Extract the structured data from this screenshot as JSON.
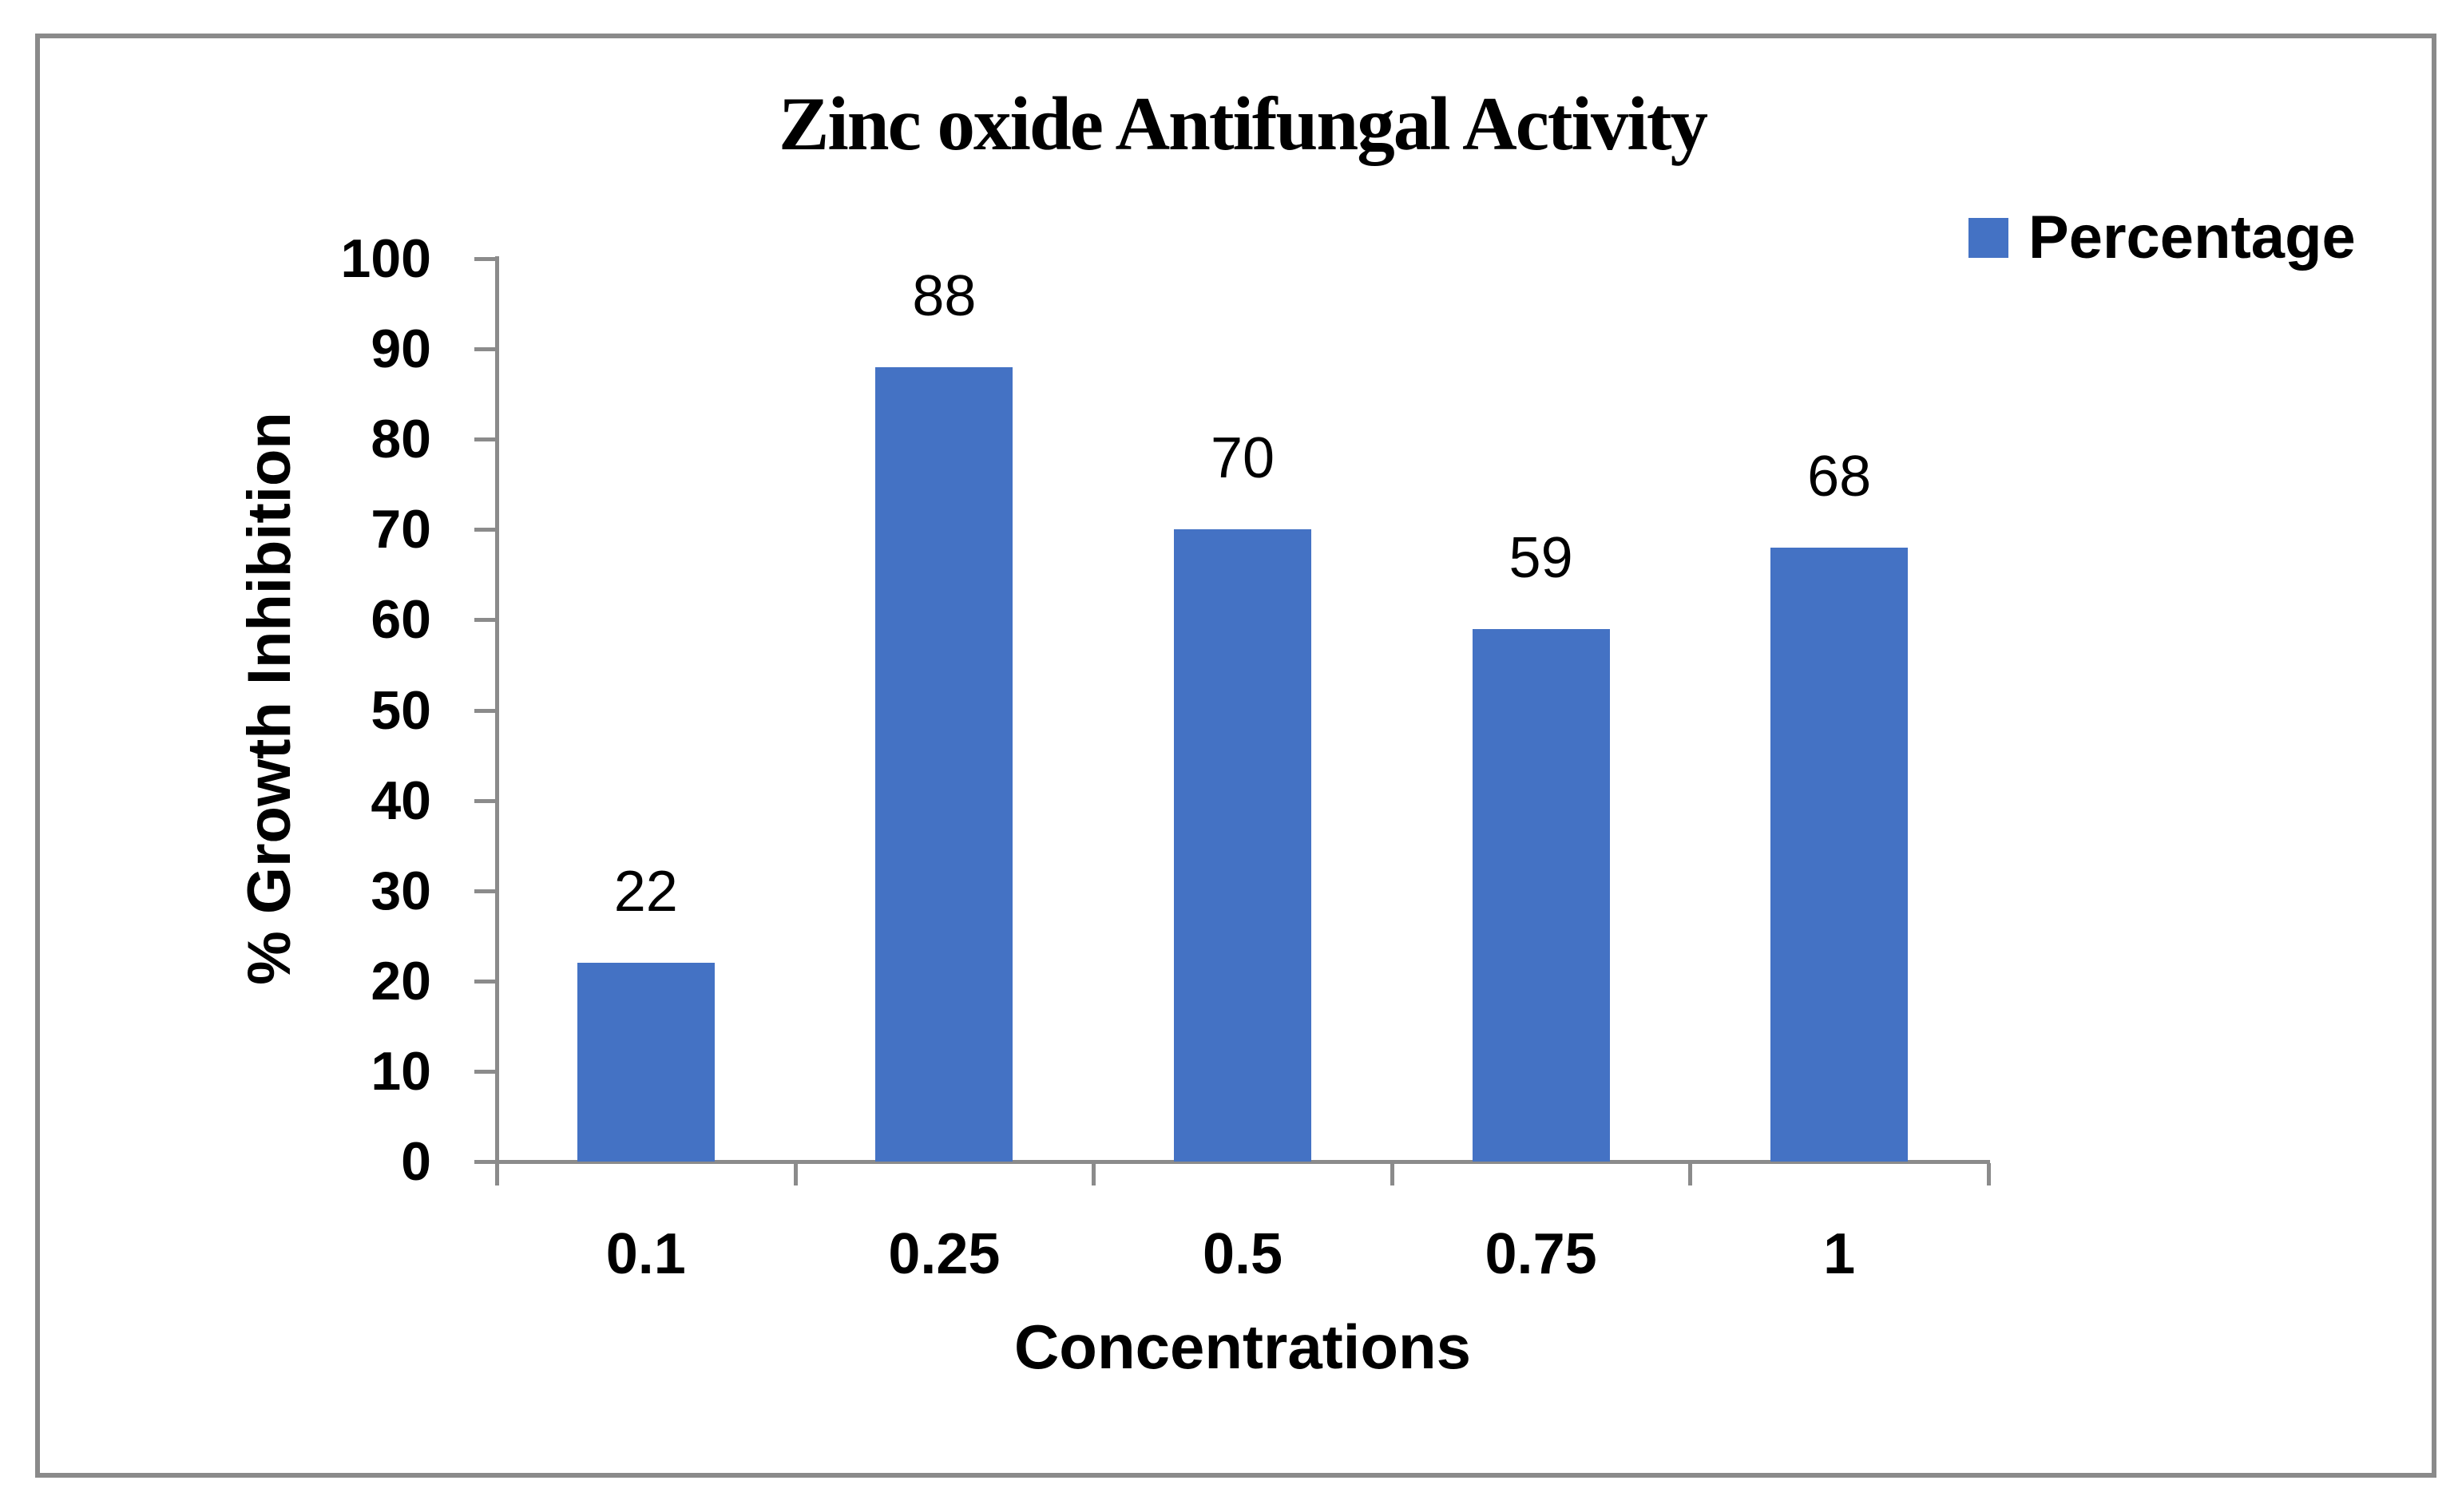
{
  "title": "Zinc oxide Antifungal Activity",
  "legend": {
    "label": "Percentage",
    "swatch_color": "#4472C4"
  },
  "axes": {
    "y_title": "% Growth Inhibition",
    "x_title": "Concentrations",
    "y_tick_labels": [
      "0",
      "10",
      "20",
      "30",
      "40",
      "50",
      "60",
      "70",
      "80",
      "90",
      "100"
    ]
  },
  "chart_data": {
    "type": "bar",
    "title": "Zinc oxide Antifungal Activity",
    "categories": [
      "0.1",
      "0.25",
      "0.5",
      "0.75",
      "1"
    ],
    "series": [
      {
        "name": "Percentage",
        "values": [
          22,
          88,
          70,
          59,
          68
        ]
      }
    ],
    "data_labels": [
      "22",
      "88",
      "70",
      "59",
      "68"
    ],
    "xlabel": "Concentrations",
    "ylabel": "% Growth Inhibition",
    "ylim": [
      0,
      100
    ],
    "ytick_step": 10,
    "yticks": [
      0,
      10,
      20,
      30,
      40,
      50,
      60,
      70,
      80,
      90,
      100
    ],
    "grid": false,
    "legend_position": "top-right",
    "bar_color": "#4472C4"
  },
  "colors": {
    "bar": "#4472C4",
    "axis": "#8b8b8b",
    "border": "#8a8a8a",
    "text": "#000000",
    "background": "#ffffff"
  }
}
